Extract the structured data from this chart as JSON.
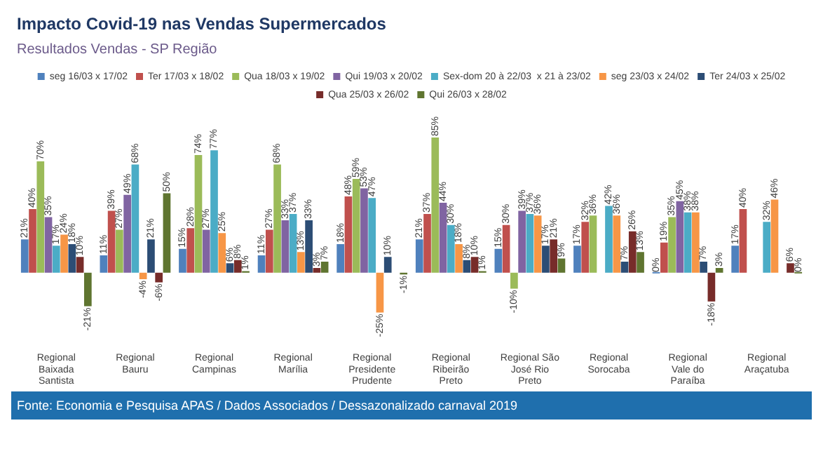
{
  "chart_data": {
    "type": "bar",
    "title": "Impacto Covid-19 nas Vendas Supermercados",
    "subtitle": "Resultados Vendas - SP Região",
    "categories": [
      "Regional Baixada Santista",
      "Regional Bauru",
      "Regional Campinas",
      "Regional Marília",
      "Regional Presidente Prudente",
      "Regional Ribeirão Preto",
      "Regional São José Rio Preto",
      "Regional Sorocaba",
      "Regional Vale do Paraíba",
      "Regional Araçatuba"
    ],
    "series": [
      {
        "name": "seg 16/03 x 17/02",
        "color": "#4f81bd",
        "values": [
          21,
          11,
          15,
          11,
          18,
          21,
          15,
          17,
          0,
          17
        ],
        "value_labels": [
          "21%",
          "11%",
          "15%",
          "11%",
          "18%",
          "21%",
          "15%",
          "17%",
          "0%",
          "17%"
        ]
      },
      {
        "name": "Ter 17/03 x 18/02",
        "color": "#c0504d",
        "values": [
          40,
          39,
          28,
          27,
          48,
          37,
          30,
          32,
          19,
          40
        ],
        "value_labels": [
          "40%",
          "39%",
          "28%",
          "27%",
          "48%",
          "37%",
          "30%",
          "32%",
          "19%",
          "40%"
        ]
      },
      {
        "name": "Qua 18/03 x 19/02",
        "color": "#9bbb59",
        "values": [
          70,
          27,
          74,
          68,
          59,
          85,
          -10,
          36,
          35,
          null
        ],
        "value_labels": [
          "70%",
          "27%",
          "74%",
          "68%",
          "59%",
          "85%",
          "-10%",
          "36%",
          "35%",
          null
        ]
      },
      {
        "name": "Qui 19/03 x 20/02",
        "color": "#8064a2",
        "values": [
          35,
          49,
          27,
          33,
          53,
          44,
          39,
          null,
          45,
          null
        ],
        "value_labels": [
          "35%",
          "49%",
          "27%",
          "33%",
          "53%",
          "44%",
          "39%",
          null,
          "45%",
          null
        ]
      },
      {
        "name": "Sex-dom 20 à 22/03  x 21 à 23/02",
        "color": "#4bacc6",
        "values": [
          17,
          68,
          77,
          37,
          47,
          30,
          37,
          42,
          38,
          32
        ],
        "value_labels": [
          "17%",
          "68%",
          "77%",
          "37%",
          "47%",
          "30%",
          "37%",
          "42%",
          "38%",
          "32%"
        ]
      },
      {
        "name": "seg 23/03 x 24/02",
        "color": "#f79646",
        "values": [
          24,
          -4,
          25,
          13,
          -25,
          18,
          36,
          36,
          38,
          46
        ],
        "value_labels": [
          "24%",
          "-4%",
          "25%",
          "13%",
          "-25%",
          "18%",
          "36%",
          "36%",
          "38%",
          "46%"
        ]
      },
      {
        "name": "Ter 24/03 x 25/02",
        "color": "#2c4d75",
        "values": [
          18,
          21,
          6,
          33,
          10,
          8,
          17,
          7,
          7,
          null
        ],
        "value_labels": [
          "18%",
          "21%",
          "6%",
          "33%",
          "10%",
          "8%",
          "17%",
          "7%",
          "7%",
          null
        ]
      },
      {
        "name": "Qua 25/03 x 26/02",
        "color": "#772c2a",
        "values": [
          10,
          -6,
          8,
          3,
          null,
          10,
          21,
          26,
          -18,
          6
        ],
        "value_labels": [
          "10%",
          "-6%",
          "8%",
          "3%",
          null,
          "10%",
          "21%",
          "26%",
          "-18%",
          "6%"
        ]
      },
      {
        "name": "Qui 26/03 x 28/02",
        "color": "#5f7530",
        "values": [
          -21,
          50,
          1,
          7,
          -1,
          1,
          9,
          13,
          3,
          0
        ],
        "value_labels": [
          "-21%",
          "50%",
          "1%",
          "7%",
          "-1%",
          "1%",
          "9%",
          "13%",
          "3%",
          "0%"
        ]
      }
    ],
    "legend": "top",
    "tick_labels": "x",
    "grid": false,
    "annotations": [
      "Fonte: Economia e Pesquisa APAS / Dados Associados / Dessazonalizado carnaval 2019"
    ]
  }
}
